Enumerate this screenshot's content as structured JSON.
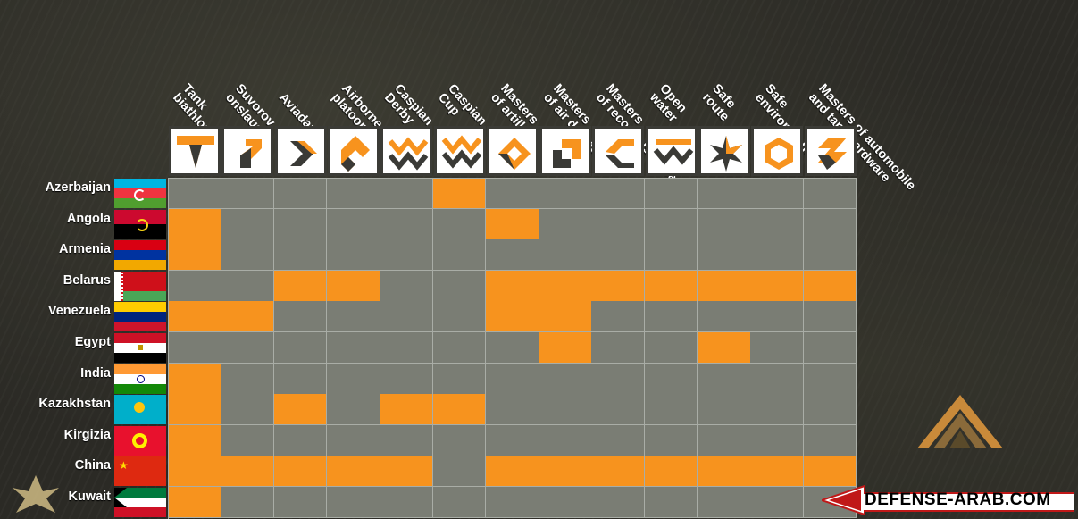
{
  "chart_data": {
    "type": "table",
    "columns": [
      "Tank\nbiathlon",
      "Suvorov\nonslaught",
      "Aviadarts",
      "Airborne\nplatoon",
      "Caspian\nDerby",
      "Caspian\nCup",
      "Masters\nof artillery fire",
      "Masters\nof air defence",
      "Masters\nof reconnaissance",
      "Open\nwater",
      "Safe\nroute",
      "Safe\nenvironment",
      "Masters of automobile\nand tank hardware"
    ],
    "rows": [
      {
        "country": "Azerbaijan",
        "participation": [
          0,
          0,
          0,
          0,
          0,
          1,
          0,
          0,
          0,
          0,
          0,
          0,
          0
        ]
      },
      {
        "country": "Angola",
        "participation": [
          1,
          0,
          0,
          0,
          0,
          0,
          1,
          0,
          0,
          0,
          0,
          0,
          0
        ]
      },
      {
        "country": "Armenia",
        "participation": [
          1,
          0,
          0,
          0,
          0,
          0,
          0,
          0,
          0,
          0,
          0,
          0,
          0
        ]
      },
      {
        "country": "Belarus",
        "participation": [
          0,
          0,
          1,
          1,
          0,
          0,
          1,
          1,
          1,
          1,
          1,
          1,
          1
        ]
      },
      {
        "country": "Venezuela",
        "participation": [
          1,
          1,
          0,
          0,
          0,
          0,
          1,
          1,
          0,
          0,
          0,
          0,
          0
        ]
      },
      {
        "country": "Egypt",
        "participation": [
          0,
          0,
          0,
          0,
          0,
          0,
          0,
          1,
          0,
          0,
          1,
          0,
          0
        ]
      },
      {
        "country": "India",
        "participation": [
          1,
          0,
          0,
          0,
          0,
          0,
          0,
          0,
          0,
          0,
          0,
          0,
          0
        ]
      },
      {
        "country": "Kazakhstan",
        "participation": [
          1,
          0,
          1,
          0,
          1,
          1,
          0,
          0,
          0,
          0,
          0,
          0,
          0
        ]
      },
      {
        "country": "Kirgizia",
        "participation": [
          1,
          0,
          0,
          0,
          0,
          0,
          0,
          0,
          0,
          0,
          0,
          0,
          0
        ]
      },
      {
        "country": "China",
        "participation": [
          1,
          1,
          1,
          1,
          1,
          0,
          1,
          1,
          1,
          1,
          1,
          1,
          1
        ]
      },
      {
        "country": "Kuwait",
        "participation": [
          1,
          0,
          0,
          0,
          0,
          0,
          0,
          0,
          0,
          0,
          0,
          0,
          0
        ]
      }
    ],
    "colors": {
      "participates": "#f7931e",
      "absent": "#7a7d74",
      "grid": "#a9ada6"
    }
  },
  "icons": [
    "tank-biathlon-icon",
    "suvorov-onslaught-icon",
    "aviadarts-icon",
    "airborne-platoon-icon",
    "caspian-derby-icon",
    "caspian-cup-icon",
    "artillery-fire-icon",
    "air-defence-icon",
    "reconnaissance-icon",
    "open-water-icon",
    "safe-route-icon",
    "safe-environment-icon",
    "automobile-tank-hardware-icon"
  ],
  "flags": [
    "azerbaijan-flag",
    "angola-flag",
    "armenia-flag",
    "belarus-flag",
    "venezuela-flag",
    "egypt-flag",
    "india-flag",
    "kazakhstan-flag",
    "kirgizia-flag",
    "china-flag",
    "kuwait-flag"
  ],
  "watermark": {
    "text": "DEFENSE-ARAB.COM"
  }
}
